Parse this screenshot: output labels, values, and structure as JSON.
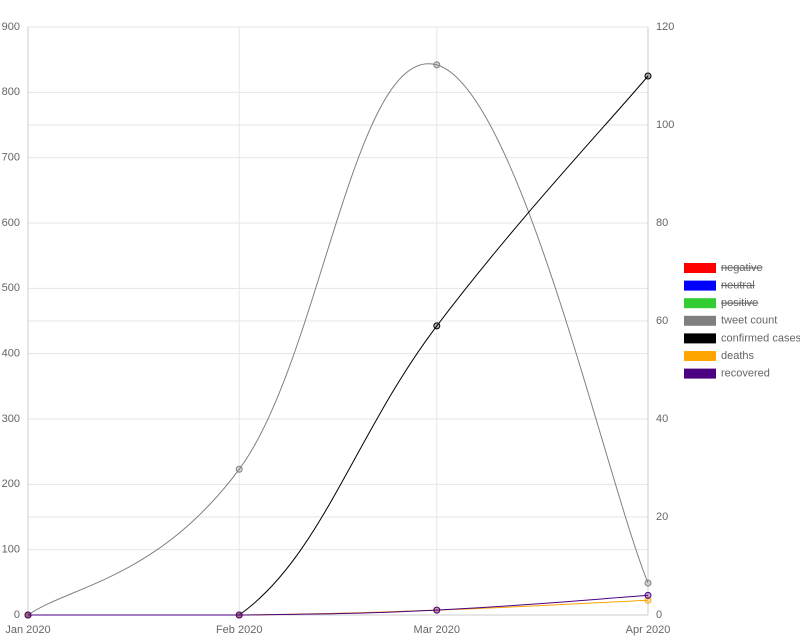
{
  "chart_data": {
    "type": "line",
    "x": [
      "Jan 2020",
      "Feb 2020",
      "Mar 2020",
      "Apr 2020"
    ],
    "ylim": [
      0,
      900
    ],
    "yticks": [
      0,
      100,
      200,
      300,
      400,
      500,
      600,
      700,
      800,
      900
    ],
    "y2lim": [
      0,
      120
    ],
    "y2ticks": [
      0,
      20,
      40,
      60,
      80,
      100,
      120
    ],
    "grid": true,
    "legend": "right",
    "series": [
      {
        "name": "negative",
        "color": "#ff0000",
        "hidden": true,
        "axis": "y2",
        "values": [
          null,
          null,
          null,
          null
        ]
      },
      {
        "name": "neutral",
        "color": "#0000ff",
        "hidden": true,
        "axis": "y2",
        "values": [
          null,
          null,
          null,
          null
        ]
      },
      {
        "name": "positive",
        "color": "#32cd32",
        "hidden": true,
        "axis": "y2",
        "values": [
          null,
          null,
          null,
          null
        ]
      },
      {
        "name": "tweet count",
        "color": "#808080",
        "values": [
          0,
          223,
          842,
          49
        ]
      },
      {
        "name": "confirmed cases",
        "color": "#000000",
        "axis": "y2",
        "values": [
          0,
          0,
          59,
          110
        ]
      },
      {
        "name": "deaths",
        "color": "#ffa500",
        "axis": "y2",
        "values": [
          0,
          0,
          1,
          3
        ]
      },
      {
        "name": "recovered",
        "color": "#4b0082",
        "axis": "y2",
        "values": [
          0,
          0,
          1,
          4
        ]
      }
    ]
  }
}
